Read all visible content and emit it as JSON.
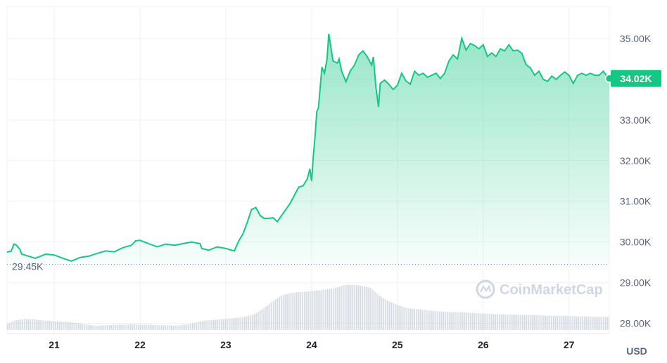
{
  "chart_data": {
    "type": "area",
    "y_ticks": [
      "35.00K",
      "34.00K",
      "33.00K",
      "32.00K",
      "31.00K",
      "30.00K",
      "29.00K",
      "28.00K"
    ],
    "y_tick_values": [
      35000,
      34000,
      33000,
      32000,
      31000,
      30000,
      29000,
      28000
    ],
    "x_ticks": [
      "21",
      "22",
      "23",
      "24",
      "25",
      "26",
      "27"
    ],
    "x_tick_days": [
      21,
      22,
      23,
      24,
      25,
      26,
      27
    ],
    "x_range_days": [
      20.45,
      27.47
    ],
    "ylim": [
      27750,
      35950
    ],
    "open_value_label": "29.45K",
    "open_value": 29450,
    "last_value_label": "34.02K",
    "last_value": 34020,
    "unit_label": "USD",
    "watermark": "CoinMarketCap",
    "price_points": [
      [
        20.45,
        29750
      ],
      [
        20.5,
        29780
      ],
      [
        20.53,
        29950
      ],
      [
        20.56,
        29920
      ],
      [
        20.6,
        29820
      ],
      [
        20.62,
        29700
      ],
      [
        20.78,
        29600
      ],
      [
        20.9,
        29700
      ],
      [
        21.0,
        29680
      ],
      [
        21.1,
        29600
      ],
      [
        21.2,
        29530
      ],
      [
        21.3,
        29620
      ],
      [
        21.4,
        29650
      ],
      [
        21.5,
        29720
      ],
      [
        21.6,
        29780
      ],
      [
        21.7,
        29760
      ],
      [
        21.8,
        29860
      ],
      [
        21.9,
        29920
      ],
      [
        21.95,
        30030
      ],
      [
        22.0,
        30040
      ],
      [
        22.05,
        30000
      ],
      [
        22.1,
        29960
      ],
      [
        22.2,
        29880
      ],
      [
        22.3,
        29950
      ],
      [
        22.4,
        29920
      ],
      [
        22.5,
        29960
      ],
      [
        22.6,
        30000
      ],
      [
        22.65,
        29980
      ],
      [
        22.7,
        29960
      ],
      [
        22.72,
        29840
      ],
      [
        22.8,
        29800
      ],
      [
        22.9,
        29880
      ],
      [
        23.0,
        29840
      ],
      [
        23.05,
        29810
      ],
      [
        23.1,
        29780
      ],
      [
        23.12,
        29880
      ],
      [
        23.15,
        30020
      ],
      [
        23.2,
        30200
      ],
      [
        23.25,
        30480
      ],
      [
        23.3,
        30800
      ],
      [
        23.35,
        30850
      ],
      [
        23.4,
        30650
      ],
      [
        23.45,
        30580
      ],
      [
        23.5,
        30580
      ],
      [
        23.55,
        30600
      ],
      [
        23.6,
        30500
      ],
      [
        23.65,
        30650
      ],
      [
        23.7,
        30800
      ],
      [
        23.75,
        30950
      ],
      [
        23.8,
        31150
      ],
      [
        23.85,
        31350
      ],
      [
        23.9,
        31380
      ],
      [
        23.95,
        31550
      ],
      [
        23.98,
        31800
      ],
      [
        24.0,
        31500
      ],
      [
        24.02,
        32100
      ],
      [
        24.04,
        32600
      ],
      [
        24.06,
        33200
      ],
      [
        24.08,
        33300
      ],
      [
        24.1,
        33800
      ],
      [
        24.12,
        34300
      ],
      [
        24.15,
        34150
      ],
      [
        24.18,
        34500
      ],
      [
        24.2,
        35120
      ],
      [
        24.22,
        34850
      ],
      [
        24.25,
        34450
      ],
      [
        24.3,
        34400
      ],
      [
        24.32,
        34500
      ],
      [
        24.35,
        34200
      ],
      [
        24.4,
        33940
      ],
      [
        24.45,
        34200
      ],
      [
        24.5,
        34350
      ],
      [
        24.55,
        34600
      ],
      [
        24.6,
        34700
      ],
      [
        24.65,
        34550
      ],
      [
        24.7,
        34350
      ],
      [
        24.72,
        34550
      ],
      [
        24.75,
        33800
      ],
      [
        24.78,
        33320
      ],
      [
        24.8,
        33900
      ],
      [
        24.85,
        33980
      ],
      [
        24.9,
        33880
      ],
      [
        24.95,
        33750
      ],
      [
        25.0,
        33850
      ],
      [
        25.05,
        34150
      ],
      [
        25.1,
        33960
      ],
      [
        25.15,
        33880
      ],
      [
        25.2,
        34200
      ],
      [
        25.25,
        34100
      ],
      [
        25.3,
        34150
      ],
      [
        25.35,
        34050
      ],
      [
        25.4,
        34100
      ],
      [
        25.45,
        34150
      ],
      [
        25.5,
        34020
      ],
      [
        25.55,
        34150
      ],
      [
        25.6,
        34450
      ],
      [
        25.65,
        34600
      ],
      [
        25.7,
        34500
      ],
      [
        25.75,
        35010
      ],
      [
        25.8,
        34720
      ],
      [
        25.85,
        34880
      ],
      [
        25.9,
        34830
      ],
      [
        25.95,
        34750
      ],
      [
        26.0,
        34850
      ],
      [
        26.05,
        34560
      ],
      [
        26.1,
        34650
      ],
      [
        26.15,
        34560
      ],
      [
        26.2,
        34750
      ],
      [
        26.25,
        34700
      ],
      [
        26.3,
        34850
      ],
      [
        26.35,
        34700
      ],
      [
        26.4,
        34720
      ],
      [
        26.45,
        34640
      ],
      [
        26.5,
        34360
      ],
      [
        26.55,
        34280
      ],
      [
        26.6,
        34100
      ],
      [
        26.65,
        34200
      ],
      [
        26.7,
        34000
      ],
      [
        26.75,
        33950
      ],
      [
        26.8,
        34080
      ],
      [
        26.85,
        34000
      ],
      [
        26.9,
        34100
      ],
      [
        26.95,
        34180
      ],
      [
        27.0,
        34100
      ],
      [
        27.05,
        33900
      ],
      [
        27.1,
        34100
      ],
      [
        27.15,
        34150
      ],
      [
        27.2,
        34100
      ],
      [
        27.25,
        34150
      ],
      [
        27.3,
        34100
      ],
      [
        27.35,
        34100
      ],
      [
        27.4,
        34200
      ],
      [
        27.45,
        34050
      ],
      [
        27.47,
        34020
      ]
    ],
    "volume_levels": [
      0.12,
      0.19,
      0.21,
      0.2,
      0.18,
      0.17,
      0.16,
      0.15,
      0.13,
      0.1,
      0.08,
      0.09,
      0.1,
      0.1,
      0.11,
      0.1,
      0.1,
      0.09,
      0.09,
      0.08,
      0.1,
      0.13,
      0.17,
      0.19,
      0.2,
      0.22,
      0.23,
      0.26,
      0.31,
      0.42,
      0.55,
      0.66,
      0.7,
      0.72,
      0.73,
      0.75,
      0.77,
      0.8,
      0.85,
      0.86,
      0.84,
      0.8,
      0.65,
      0.55,
      0.48,
      0.42,
      0.4,
      0.38,
      0.36,
      0.35,
      0.34,
      0.34,
      0.33,
      0.32,
      0.31,
      0.3,
      0.3,
      0.29,
      0.29,
      0.28,
      0.28,
      0.27,
      0.27,
      0.27,
      0.26,
      0.26,
      0.25,
      0.25
    ]
  }
}
